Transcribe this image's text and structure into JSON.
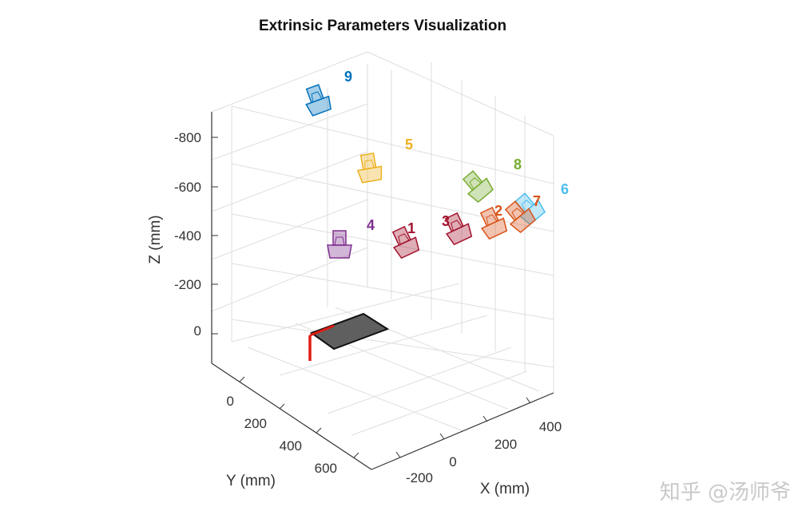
{
  "chart_data": {
    "type": "scatter",
    "title": "Extrinsic Parameters Visualization",
    "xlabel": "X (mm)",
    "ylabel": "Y (mm)",
    "zlabel": "Z (mm)",
    "x_ticks": [
      "-200",
      "0",
      "200",
      "400"
    ],
    "y_ticks": [
      "0",
      "200",
      "400",
      "600"
    ],
    "z_ticks": [
      "-800",
      "-600",
      "-400",
      "-200",
      "0"
    ],
    "grid": true,
    "cameras": [
      {
        "label": "1",
        "color": "#a2142f"
      },
      {
        "label": "2",
        "color": "#d95319"
      },
      {
        "label": "3",
        "color": "#a2142f"
      },
      {
        "label": "4",
        "color": "#7e2f8e"
      },
      {
        "label": "5",
        "color": "#edb120"
      },
      {
        "label": "6",
        "color": "#4dbeee"
      },
      {
        "label": "7",
        "color": "#d95319"
      },
      {
        "label": "8",
        "color": "#77ac30"
      },
      {
        "label": "9",
        "color": "#0072bd"
      }
    ]
  },
  "watermark": "知乎 @汤师爷"
}
